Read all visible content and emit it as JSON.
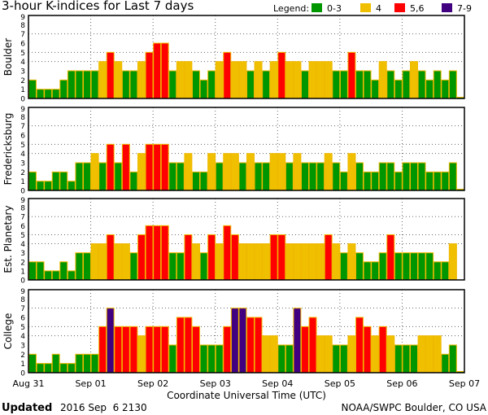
{
  "chart_data": {
    "type": "bar",
    "title": "3-hour K-indices for Last 7 days",
    "xlabel": "Coordinate Universal Time (UTC)",
    "x_tick_labels": [
      "Aug 31",
      "Sep 01",
      "Sep 02",
      "Sep 03",
      "Sep 04",
      "Sep 05",
      "Sep 06",
      "Sep 07"
    ],
    "y_tick_labels": [
      "0",
      "1",
      "2",
      "3",
      "4",
      "5",
      "6",
      "7",
      "8",
      "9"
    ],
    "ylim": [
      0,
      9
    ],
    "bars_per_day": 8,
    "legend": {
      "label": "Legend:",
      "placement": "top-right",
      "entries": [
        {
          "label": "0-3",
          "color": "#009600"
        },
        {
          "label": "4",
          "color": "#f0c000"
        },
        {
          "label": "5,6",
          "color": "#ff0000"
        },
        {
          "label": "7-9",
          "color": "#400080"
        }
      ]
    },
    "series": [
      {
        "name": "Boulder",
        "values": [
          2,
          1,
          1,
          1,
          2,
          3,
          3,
          3,
          3,
          4,
          5,
          4,
          3,
          3,
          4,
          5,
          6,
          6,
          3,
          4,
          4,
          3,
          2,
          3,
          4,
          5,
          4,
          4,
          3,
          4,
          3,
          4,
          5,
          4,
          4,
          3,
          4,
          4,
          4,
          3,
          3,
          5,
          3,
          3,
          2,
          4,
          3,
          2,
          3,
          4,
          3,
          2,
          3,
          2,
          3,
          0
        ]
      },
      {
        "name": "Fredericksburg",
        "values": [
          2,
          1,
          1,
          2,
          2,
          1,
          3,
          3,
          4,
          3,
          5,
          3,
          5,
          2,
          4,
          5,
          5,
          5,
          3,
          3,
          4,
          2,
          2,
          4,
          3,
          4,
          4,
          3,
          4,
          3,
          3,
          4,
          4,
          3,
          4,
          3,
          3,
          3,
          4,
          3,
          2,
          4,
          3,
          2,
          2,
          3,
          3,
          2,
          3,
          3,
          3,
          2,
          2,
          2,
          3,
          0
        ]
      },
      {
        "name": "Est. Planetary",
        "values": [
          2,
          2,
          1,
          1,
          2,
          1,
          3,
          3,
          4,
          4,
          5,
          4,
          4,
          3,
          5,
          6,
          6,
          6,
          3,
          3,
          5,
          4,
          3,
          5,
          4,
          6,
          5,
          4,
          4,
          4,
          4,
          5,
          5,
          4,
          4,
          4,
          4,
          4,
          5,
          4,
          3,
          4,
          3,
          2,
          2,
          3,
          5,
          3,
          3,
          3,
          3,
          3,
          2,
          2,
          4,
          null
        ]
      },
      {
        "name": "College",
        "values": [
          2,
          1,
          1,
          2,
          1,
          1,
          2,
          2,
          2,
          5,
          7,
          5,
          5,
          5,
          4,
          5,
          5,
          5,
          3,
          6,
          6,
          5,
          3,
          3,
          3,
          5,
          7,
          7,
          6,
          6,
          4,
          4,
          3,
          3,
          7,
          5,
          6,
          4,
          4,
          3,
          3,
          4,
          6,
          5,
          4,
          5,
          4,
          3,
          3,
          3,
          4,
          4,
          4,
          2,
          3,
          0
        ]
      }
    ]
  },
  "footer": {
    "updated_label": "Updated",
    "updated_value": "2016 Sep  6 2130",
    "source": "NOAA/SWPC Boulder, CO USA"
  }
}
